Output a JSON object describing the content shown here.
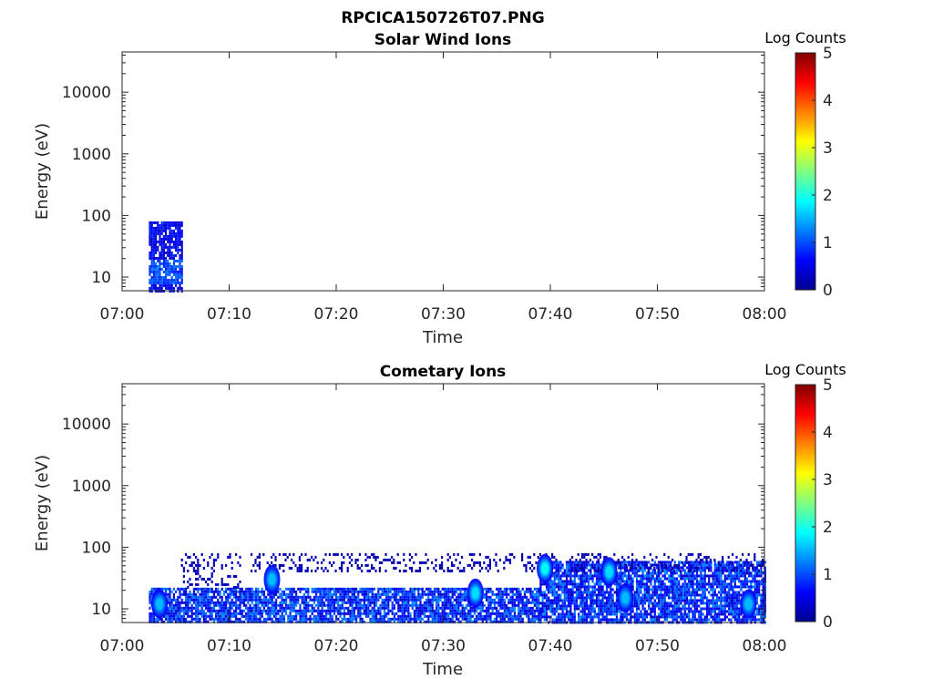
{
  "figure": {
    "title": "RPCICA150726T07.PNG"
  },
  "colormap": [
    "#00008f",
    "#0000ff",
    "#0080ff",
    "#00ffff",
    "#80ff80",
    "#ffff00",
    "#ff8000",
    "#ff0000",
    "#800000"
  ],
  "chart_data": [
    {
      "type": "heatmap",
      "title": "Solar Wind Ions",
      "xlabel": "Time",
      "ylabel": "Energy (eV)",
      "x_ticks": [
        "07:00",
        "07:10",
        "07:20",
        "07:30",
        "07:40",
        "07:50",
        "08:00"
      ],
      "xlim": [
        "07:00",
        "08:00"
      ],
      "y_scale": "log",
      "y_ticks": [
        10,
        100,
        1000,
        10000
      ],
      "y_tick_labels": [
        "10",
        "100",
        "1000",
        "10000"
      ],
      "ylim": [
        6,
        45000
      ],
      "colorbar": {
        "label": "Log Counts",
        "range": [
          0,
          5
        ],
        "ticks": [
          "0",
          "1",
          "2",
          "3",
          "4",
          "5"
        ]
      },
      "activity": [
        {
          "start": "07:02.5",
          "end": "07:05.5",
          "emin_eV": 6,
          "emax_eV": 80,
          "peak_log_counts": 1.0,
          "core_eV": [
            8,
            20
          ]
        }
      ]
    },
    {
      "type": "heatmap",
      "title": "Cometary Ions",
      "xlabel": "Time",
      "ylabel": "Energy (eV)",
      "x_ticks": [
        "07:00",
        "07:10",
        "07:20",
        "07:30",
        "07:40",
        "07:50",
        "08:00"
      ],
      "xlim": [
        "07:00",
        "08:00"
      ],
      "y_scale": "log",
      "y_ticks": [
        10,
        100,
        1000,
        10000
      ],
      "y_tick_labels": [
        "10",
        "100",
        "1000",
        "10000"
      ],
      "ylim": [
        6,
        45000
      ],
      "colorbar": {
        "label": "Log Counts",
        "range": [
          0,
          5
        ],
        "ticks": [
          "0",
          "1",
          "2",
          "3",
          "4",
          "5"
        ]
      },
      "activity": [
        {
          "start": "07:02.5",
          "end": "07:39",
          "emin_eV": 6,
          "emax_eV": 22,
          "peak_log_counts": 1.8
        },
        {
          "start": "07:05.5",
          "end": "07:11",
          "emin_eV": 22,
          "emax_eV": 80,
          "peak_log_counts": 0.5
        },
        {
          "start": "07:39",
          "end": "08:00",
          "emin_eV": 6,
          "emax_eV": 60,
          "peak_log_counts": 1.8
        },
        {
          "start": "07:12",
          "end": "08:00",
          "emin_eV": 40,
          "emax_eV": 80,
          "peak_log_counts": 0.3
        }
      ],
      "hotspots": [
        {
          "time": "07:03.5",
          "energy_eV": 12,
          "log_counts": 1.8
        },
        {
          "time": "07:14",
          "energy_eV": 30,
          "log_counts": 1.8
        },
        {
          "time": "07:33",
          "energy_eV": 18,
          "log_counts": 2.0
        },
        {
          "time": "07:39.5",
          "energy_eV": 45,
          "log_counts": 2.2
        },
        {
          "time": "07:45.5",
          "energy_eV": 40,
          "log_counts": 2.0
        },
        {
          "time": "07:47",
          "energy_eV": 15,
          "log_counts": 1.8
        },
        {
          "time": "07:58.5",
          "energy_eV": 12,
          "log_counts": 1.8
        }
      ]
    }
  ]
}
